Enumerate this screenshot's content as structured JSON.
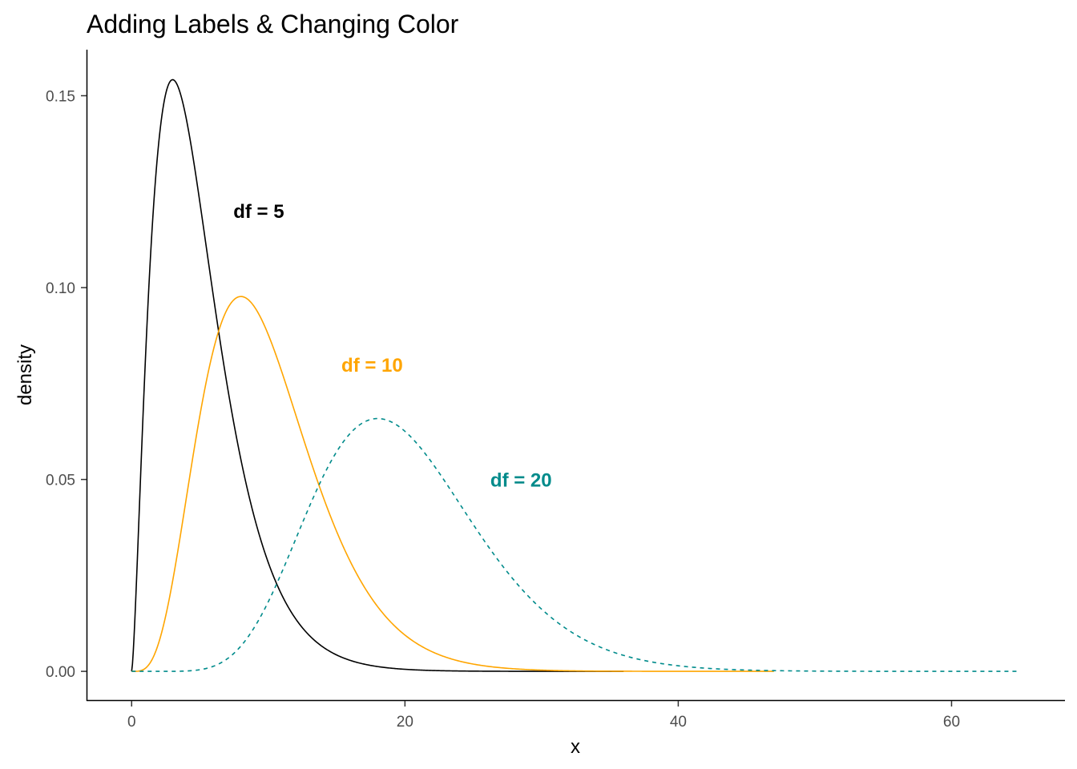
{
  "chart_data": {
    "type": "line",
    "title": "Adding Labels & Changing Color",
    "xlabel": "x",
    "ylabel": "density",
    "xlim": [
      -3.3,
      68.3
    ],
    "ylim": [
      -0.0077,
      0.162
    ],
    "x_ticks": [
      0,
      20,
      40,
      60
    ],
    "x_tick_labels": [
      "0",
      "20",
      "40",
      "60"
    ],
    "y_ticks": [
      0.0,
      0.05,
      0.1,
      0.15
    ],
    "y_tick_labels": [
      "0.00",
      "0.05",
      "0.10",
      "0.15"
    ],
    "grid": false,
    "legend": "none",
    "series": [
      {
        "distribution": "chi-squared",
        "df": 5,
        "x_range": [
          0,
          36
        ],
        "color": "#000000",
        "linetype": "solid",
        "peak": {
          "x": 3,
          "y": 0.154
        }
      },
      {
        "distribution": "chi-squared",
        "df": 10,
        "x_range": [
          0,
          47
        ],
        "color": "#FFA500",
        "linetype": "solid",
        "peak": {
          "x": 8,
          "y": 0.0977
        }
      },
      {
        "distribution": "chi-squared",
        "df": 20,
        "x_range": [
          0,
          65
        ],
        "color": "#008B8B",
        "linetype": "dashed",
        "peak": {
          "x": 18,
          "y": 0.0661
        }
      }
    ],
    "annotations": [
      {
        "text": "df = 5",
        "x": 9.3,
        "y": 0.12,
        "color": "#000000"
      },
      {
        "text": "df = 10",
        "x": 17.6,
        "y": 0.08,
        "color": "#FFA500"
      },
      {
        "text": "df = 20",
        "x": 28.5,
        "y": 0.05,
        "color": "#008B8B"
      }
    ]
  }
}
